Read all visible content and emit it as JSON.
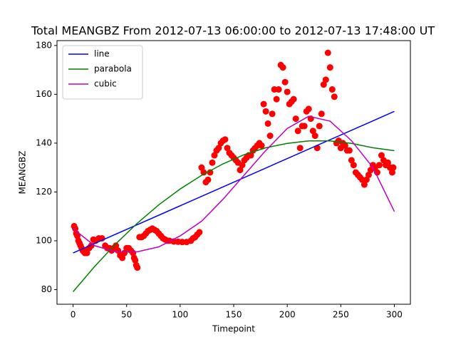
{
  "chart_data": {
    "type": "scatter",
    "title": "Total MEANGBZ From 2012-07-13 06:00:00 to 2012-07-13 17:48:00 UT",
    "x_label": "Timepoint",
    "y_label": "MEANGBZ",
    "xlim": [
      -15,
      315
    ],
    "ylim": [
      74,
      182
    ],
    "xticks": [
      0,
      50,
      100,
      150,
      200,
      250,
      300
    ],
    "yticks": [
      80,
      100,
      120,
      140,
      160,
      180
    ],
    "legend": "upper left",
    "series": [
      {
        "type": "scatter",
        "color": "#ff0000",
        "x": [
          1,
          2,
          3,
          4,
          5,
          6,
          7,
          8,
          9,
          10,
          11,
          12,
          13,
          15,
          17,
          19,
          21,
          24,
          27,
          30,
          32,
          34,
          36,
          38,
          40,
          42,
          44,
          46,
          48,
          50,
          52,
          54,
          56,
          57,
          58,
          59,
          60,
          62,
          64,
          66,
          68,
          70,
          72,
          74,
          76,
          78,
          80,
          82,
          84,
          86,
          88,
          90,
          94,
          98,
          102,
          106,
          110,
          112,
          114,
          116,
          118,
          120,
          122,
          124,
          126,
          128,
          130,
          132,
          134,
          136,
          138,
          140,
          142,
          144,
          146,
          148,
          150,
          152,
          154,
          156,
          158,
          160,
          162,
          164,
          166,
          168,
          170,
          172,
          174,
          176,
          178,
          180,
          182,
          184,
          186,
          188,
          190,
          192,
          194,
          196,
          198,
          200,
          202,
          204,
          206,
          208,
          210,
          212,
          214,
          216,
          218,
          220,
          222,
          224,
          226,
          228,
          230,
          232,
          234,
          236,
          238,
          240,
          242,
          244,
          246,
          248,
          250,
          252,
          254,
          256,
          258,
          260,
          262,
          264,
          266,
          268,
          270,
          272,
          274,
          276,
          278,
          280,
          282,
          284,
          286,
          288,
          290,
          292,
          294,
          296,
          298,
          299
        ],
        "values": [
          106,
          105,
          103,
          102,
          100,
          99,
          98,
          97,
          96,
          95.5,
          95,
          96,
          95,
          97,
          98,
          100.5,
          100,
          101,
          101,
          98,
          97,
          97,
          96,
          97,
          98,
          96,
          94,
          93,
          95,
          97,
          97,
          96,
          95,
          93,
          92,
          90,
          89,
          101.5,
          101.5,
          102,
          103,
          104,
          104.5,
          105,
          104.5,
          104,
          103,
          102,
          101,
          100.5,
          100,
          100,
          99.7,
          99.6,
          99.5,
          99.5,
          100,
          101,
          101.5,
          102.5,
          103.5,
          130,
          128,
          124,
          125,
          128,
          132,
          135,
          137,
          138,
          140,
          141,
          141.5,
          138,
          136,
          135,
          134,
          133,
          132,
          129,
          131,
          133,
          134,
          135,
          135,
          137,
          138,
          139,
          140,
          139,
          156,
          153,
          148,
          143,
          152,
          162,
          158,
          162,
          172,
          171,
          165,
          161,
          156,
          157,
          158,
          150,
          145,
          138,
          147,
          147,
          153,
          154,
          150,
          145,
          143,
          138,
          147,
          152,
          164,
          166,
          177,
          171,
          162,
          159,
          140,
          141,
          138,
          140,
          139,
          137,
          137,
          133,
          131,
          128,
          127,
          126,
          125,
          123,
          125,
          127,
          129,
          131,
          130,
          128,
          131,
          135,
          133,
          131,
          132,
          130,
          128,
          130
        ]
      },
      {
        "type": "line",
        "name": "line",
        "color": "#0000ff",
        "x": [
          0,
          300
        ],
        "values": [
          95,
          153
        ]
      },
      {
        "type": "line",
        "name": "parabola",
        "color": "#008000",
        "x": [
          0,
          20,
          40,
          60,
          80,
          100,
          120,
          140,
          160,
          180,
          200,
          220,
          240,
          260,
          280,
          300
        ],
        "values": [
          79.1,
          89.4,
          98.8,
          107.2,
          114.7,
          121.2,
          126.8,
          131.5,
          135.3,
          138.1,
          139.9,
          140.9,
          140.9,
          139.9,
          138.1,
          136.9
        ]
      },
      {
        "type": "line",
        "name": "cubic",
        "color": "#bf00bf",
        "x": [
          0,
          20,
          40,
          60,
          80,
          100,
          120,
          140,
          160,
          180,
          200,
          220,
          240,
          260,
          280,
          300
        ],
        "values": [
          105,
          98,
          95.5,
          95.5,
          97.5,
          102,
          108,
          117,
          127,
          137,
          146,
          151,
          149,
          141,
          130,
          112
        ]
      }
    ]
  }
}
